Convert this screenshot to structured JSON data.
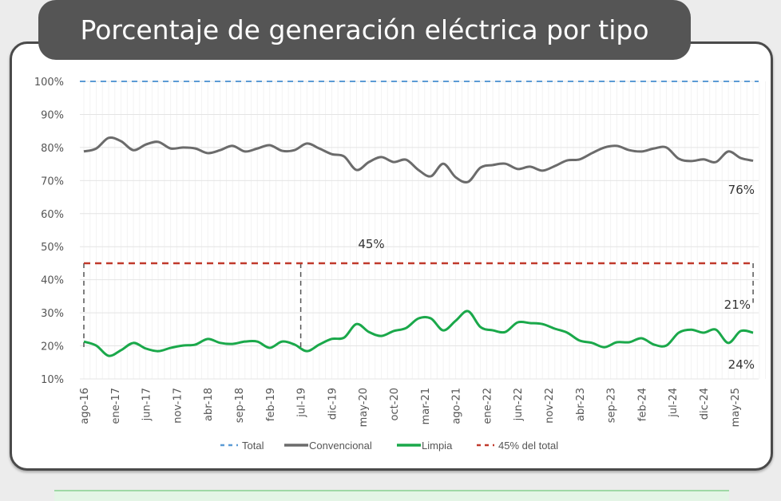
{
  "title": "Porcentaje de generación eléctrica por tipo",
  "chart_data": {
    "type": "line",
    "title": "Porcentaje de generación eléctrica por tipo",
    "xlabel": "",
    "ylabel": "",
    "ylim": [
      10,
      100
    ],
    "yticks": [
      "10%",
      "20%",
      "30%",
      "40%",
      "50%",
      "60%",
      "70%",
      "80%",
      "90%",
      "100%"
    ],
    "xticks": [
      "ago-16",
      "ene-17",
      "jun-17",
      "nov-17",
      "abr-18",
      "sep-18",
      "feb-19",
      "jul-19",
      "dic-19",
      "may-20",
      "oct-20",
      "mar-21",
      "ago-21",
      "ene-22",
      "jun-22",
      "nov-22",
      "abr-23",
      "sep-23",
      "feb-24",
      "jul-24",
      "dic-24",
      "may-25"
    ],
    "grid": true,
    "legend_position": "bottom",
    "x": [
      "2016-08",
      "2016-10",
      "2016-12",
      "2017-02",
      "2017-04",
      "2017-06",
      "2017-08",
      "2017-10",
      "2017-12",
      "2018-02",
      "2018-04",
      "2018-06",
      "2018-08",
      "2018-10",
      "2018-12",
      "2019-02",
      "2019-04",
      "2019-06",
      "2019-08",
      "2019-10",
      "2019-12",
      "2020-02",
      "2020-04",
      "2020-06",
      "2020-08",
      "2020-10",
      "2020-12",
      "2021-02",
      "2021-04",
      "2021-06",
      "2021-08",
      "2021-10",
      "2021-12",
      "2022-02",
      "2022-04",
      "2022-06",
      "2022-08",
      "2022-10",
      "2022-12",
      "2023-02",
      "2023-04",
      "2023-06",
      "2023-08",
      "2023-10",
      "2023-12",
      "2024-02",
      "2024-04",
      "2024-06",
      "2024-08",
      "2024-10",
      "2024-12",
      "2025-02",
      "2025-04",
      "2025-06",
      "2025-08"
    ],
    "series": [
      {
        "name": "Total",
        "color": "#5b9bd5",
        "style": "dashed",
        "values": "constant 100"
      },
      {
        "name": "Convencional",
        "color": "#6b6b6b",
        "style": "solid",
        "values": [
          78.8,
          79.7,
          82.9,
          81.9,
          79.2,
          80.9,
          81.7,
          79.7,
          80.0,
          79.7,
          78.3,
          79.2,
          80.5,
          78.8,
          79.7,
          80.7,
          79.0,
          79.2,
          81.2,
          79.7,
          78.0,
          77.3,
          73.2,
          75.6,
          77.1,
          75.6,
          76.3,
          73.2,
          71.3,
          75.1,
          71.0,
          69.6,
          73.9,
          74.7,
          75.1,
          73.5,
          74.2,
          73.0,
          74.4,
          76.1,
          76.4,
          78.3,
          80.0,
          80.5,
          79.2,
          78.8,
          79.7,
          80.0,
          76.6,
          75.9,
          76.4,
          75.6,
          78.8,
          76.8,
          76.0
        ]
      },
      {
        "name": "Limpia",
        "color": "#1aa84a",
        "style": "solid",
        "values": [
          21.3,
          20.1,
          17.0,
          18.7,
          20.9,
          19.2,
          18.4,
          19.4,
          20.1,
          20.4,
          22.1,
          20.9,
          20.6,
          21.3,
          21.3,
          19.4,
          21.3,
          20.4,
          18.4,
          20.4,
          22.1,
          22.5,
          26.6,
          24.2,
          23.0,
          24.5,
          25.4,
          28.3,
          28.3,
          24.7,
          27.6,
          30.5,
          25.7,
          24.7,
          24.2,
          27.1,
          26.9,
          26.6,
          25.2,
          24.0,
          21.6,
          20.9,
          19.6,
          21.1,
          21.1,
          22.3,
          20.4,
          20.1,
          24.0,
          24.9,
          24.0,
          24.9,
          20.9,
          24.5,
          24.0
        ]
      },
      {
        "name": "45% del total",
        "color": "#c0392b",
        "style": "dashed",
        "values": "constant 45"
      }
    ],
    "annotations": [
      {
        "text": "76%",
        "target": "Convencional final"
      },
      {
        "text": "45%",
        "target": "45% del total"
      },
      {
        "text": "21%",
        "target": "gap to 45% final"
      },
      {
        "text": "24%",
        "target": "Limpia final"
      }
    ],
    "reference_markers": [
      "2016-08",
      "2019-07",
      "2025-08"
    ]
  }
}
